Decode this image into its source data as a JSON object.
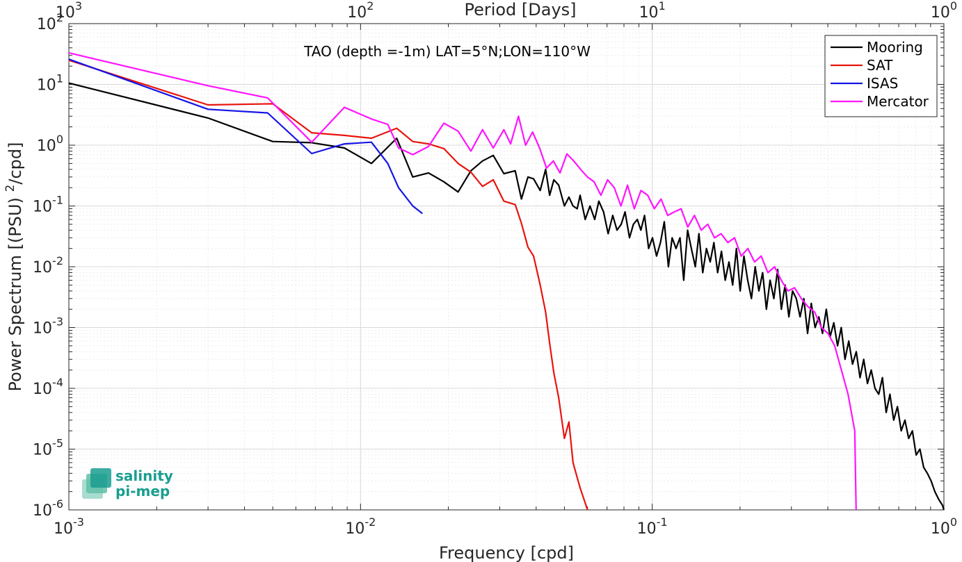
{
  "chart_data": {
    "type": "line",
    "title": "",
    "annotation": "TAO (depth =-1m) LAT=5°N;LON=110°W",
    "xlabel": "Frequency [cpd]",
    "ylabel": "Power Spectrum [(PSU)²/cpd]",
    "x2label": "Period [Days]",
    "xscale": "log",
    "yscale": "log",
    "xlim": [
      0.001,
      1
    ],
    "ylim": [
      1e-06,
      100
    ],
    "grid": true,
    "legend_position": "top-right",
    "x_ticks": [
      {
        "value": 0.001,
        "base": "10",
        "exp": "-3"
      },
      {
        "value": 0.01,
        "base": "10",
        "exp": "-2"
      },
      {
        "value": 0.1,
        "base": "10",
        "exp": "-1"
      },
      {
        "value": 1,
        "base": "10",
        "exp": "0"
      }
    ],
    "x2_ticks": [
      {
        "base": "10",
        "exp": "3"
      },
      {
        "base": "10",
        "exp": "2"
      },
      {
        "base": "10",
        "exp": "1"
      },
      {
        "base": "10",
        "exp": "0"
      }
    ],
    "y_ticks": [
      {
        "value": 1e-06,
        "base": "10",
        "exp": "-6"
      },
      {
        "value": 1e-05,
        "base": "10",
        "exp": "-5"
      },
      {
        "value": 0.0001,
        "base": "10",
        "exp": "-4"
      },
      {
        "value": 0.001,
        "base": "10",
        "exp": "-3"
      },
      {
        "value": 0.01,
        "base": "10",
        "exp": "-2"
      },
      {
        "value": 0.1,
        "base": "10",
        "exp": "-1"
      },
      {
        "value": 1,
        "base": "10",
        "exp": "0"
      },
      {
        "value": 10,
        "base": "10",
        "exp": "1"
      },
      {
        "value": 100,
        "base": "10",
        "exp": "2"
      }
    ],
    "series": [
      {
        "name": "Mooring",
        "color": "#000000",
        "x": [
          0.001,
          0.003,
          0.005,
          0.0068,
          0.0088,
          0.0109,
          0.0133,
          0.0151,
          0.0171,
          0.0193,
          0.0216,
          0.0239,
          0.0262,
          0.0285,
          0.031,
          0.0339,
          0.0356,
          0.0375,
          0.0392,
          0.0413,
          0.0431,
          0.0445,
          0.046,
          0.0478,
          0.05,
          0.0518,
          0.0535,
          0.0553,
          0.0566,
          0.0589,
          0.0612,
          0.0635,
          0.0656,
          0.0681,
          0.0706,
          0.0732,
          0.0757,
          0.0783,
          0.0807,
          0.0836,
          0.0862,
          0.0889,
          0.0914,
          0.0941,
          0.0972,
          0.1002,
          0.1035,
          0.1067,
          0.11,
          0.1136,
          0.117,
          0.1207,
          0.1245,
          0.1282,
          0.1322,
          0.1362,
          0.1405,
          0.1446,
          0.149,
          0.1534,
          0.158,
          0.1627,
          0.1676,
          0.1727,
          0.1779,
          0.1833,
          0.1887,
          0.1944,
          0.2002,
          0.2062,
          0.2124,
          0.2188,
          0.2254,
          0.2321,
          0.2391,
          0.2463,
          0.2536,
          0.2612,
          0.2692,
          0.2772,
          0.2855,
          0.294,
          0.3028,
          0.3119,
          0.3213,
          0.3309,
          0.3408,
          0.351,
          0.3616,
          0.3725,
          0.3836,
          0.3951,
          0.407,
          0.4192,
          0.4318,
          0.4447,
          0.4581,
          0.4718,
          0.486,
          0.5006,
          0.5156,
          0.531,
          0.5469,
          0.5633,
          0.5802,
          0.5977,
          0.6156,
          0.634,
          0.6531,
          0.6727,
          0.6929,
          0.7137,
          0.7351,
          0.7571,
          0.7798,
          0.8032,
          0.8273,
          0.8521,
          0.8777,
          0.904,
          0.9311,
          0.9591,
          0.9879,
          1.0
        ],
        "values": [
          10.5,
          2.8,
          1.15,
          1.1,
          0.9,
          0.5,
          1.3,
          0.3,
          0.35,
          0.25,
          0.17,
          0.38,
          0.55,
          0.68,
          0.34,
          0.38,
          0.13,
          0.3,
          0.28,
          0.18,
          0.4,
          0.15,
          0.27,
          0.22,
          0.1,
          0.14,
          0.1,
          0.09,
          0.15,
          0.06,
          0.1,
          0.06,
          0.12,
          0.08,
          0.035,
          0.07,
          0.04,
          0.05,
          0.08,
          0.03,
          0.05,
          0.06,
          0.04,
          0.07,
          0.02,
          0.03,
          0.015,
          0.025,
          0.055,
          0.01,
          0.03,
          0.02,
          0.03,
          0.006,
          0.04,
          0.02,
          0.01,
          0.035,
          0.008,
          0.02,
          0.012,
          0.025,
          0.008,
          0.018,
          0.006,
          0.012,
          0.005,
          0.02,
          0.004,
          0.015,
          0.006,
          0.003,
          0.01,
          0.004,
          0.008,
          0.002,
          0.006,
          0.003,
          0.009,
          0.002,
          0.005,
          0.0015,
          0.004,
          0.003,
          0.0015,
          0.003,
          0.0008,
          0.0025,
          0.001,
          0.0015,
          0.0008,
          0.002,
          0.0007,
          0.0012,
          0.0005,
          0.001,
          0.0003,
          0.0006,
          0.00025,
          0.0004,
          0.00015,
          0.0003,
          0.00012,
          0.0002,
          0.0001,
          8e-05,
          0.00015,
          4e-05,
          8e-05,
          3e-05,
          5e-05,
          2e-05,
          3e-05,
          1.5e-05,
          2e-05,
          8e-06,
          1e-05,
          5e-06,
          4e-06,
          3e-06,
          2e-06,
          1.5e-06,
          1.2e-06,
          1e-06
        ]
      },
      {
        "name": "SAT",
        "color": "#e8140e",
        "x": [
          0.001,
          0.003,
          0.005,
          0.0068,
          0.0088,
          0.0109,
          0.0133,
          0.0151,
          0.0171,
          0.0193,
          0.0216,
          0.0239,
          0.0262,
          0.0285,
          0.031,
          0.0339,
          0.0356,
          0.0375,
          0.0392,
          0.0413,
          0.0431,
          0.0445,
          0.046,
          0.0478,
          0.05,
          0.0518,
          0.0535,
          0.0553,
          0.0566,
          0.0589,
          0.06
        ],
        "values": [
          25,
          4.6,
          4.8,
          1.6,
          1.45,
          1.3,
          1.9,
          1.15,
          1.05,
          0.88,
          0.5,
          0.36,
          0.21,
          0.27,
          0.12,
          0.105,
          0.052,
          0.021,
          0.015,
          0.005,
          0.0018,
          0.00055,
          0.00018,
          7e-05,
          1.5e-05,
          2.8e-05,
          6e-06,
          3.4e-06,
          2.3e-06,
          1.3e-06,
          1e-06
        ]
      },
      {
        "name": "ISAS",
        "color": "#1414e6",
        "x": [
          0.001,
          0.003,
          0.0048,
          0.0068,
          0.0088,
          0.0109,
          0.0124,
          0.0135,
          0.0151,
          0.0163
        ],
        "values": [
          26,
          3.9,
          3.4,
          0.73,
          1.05,
          1.12,
          0.5,
          0.2,
          0.1,
          0.075
        ]
      },
      {
        "name": "Mercator",
        "color": "#ff14ff",
        "x": [
          0.001,
          0.003,
          0.0048,
          0.0068,
          0.0088,
          0.0109,
          0.0124,
          0.0135,
          0.0151,
          0.0171,
          0.0193,
          0.0216,
          0.0239,
          0.0262,
          0.0285,
          0.031,
          0.0327,
          0.0348,
          0.0368,
          0.0389,
          0.0411,
          0.0434,
          0.0458,
          0.0483,
          0.051,
          0.0538,
          0.0568,
          0.06,
          0.0632,
          0.0667,
          0.0703,
          0.0741,
          0.0781,
          0.0823,
          0.0868,
          0.0915,
          0.0965,
          0.1017,
          0.1072,
          0.113,
          0.1191,
          0.1256,
          0.1324,
          0.1396,
          0.1471,
          0.1551,
          0.1635,
          0.1723,
          0.1817,
          0.1915,
          0.2018,
          0.2128,
          0.2243,
          0.2364,
          0.2492,
          0.2627,
          0.2769,
          0.2919,
          0.3077,
          0.3244,
          0.342,
          0.3605,
          0.38,
          0.4006,
          0.4223,
          0.4452,
          0.4693,
          0.4947,
          0.5
        ],
        "values": [
          33,
          9.5,
          6,
          1.12,
          4.2,
          2.7,
          2.2,
          0.9,
          0.7,
          0.95,
          2.3,
          1.7,
          0.8,
          1.8,
          0.9,
          1.8,
          1.05,
          3.0,
          1.0,
          1.65,
          0.9,
          0.42,
          0.55,
          0.35,
          0.72,
          0.55,
          0.4,
          0.3,
          0.25,
          0.15,
          0.27,
          0.2,
          0.1,
          0.22,
          0.09,
          0.18,
          0.15,
          0.09,
          0.13,
          0.07,
          0.08,
          0.09,
          0.045,
          0.07,
          0.04,
          0.05,
          0.03,
          0.035,
          0.025,
          0.03,
          0.015,
          0.02,
          0.012,
          0.015,
          0.008,
          0.01,
          0.006,
          0.004,
          0.0045,
          0.003,
          0.0022,
          0.0018,
          0.001,
          0.0008,
          0.0005,
          0.0002,
          8e-05,
          2e-05,
          1e-06
        ]
      }
    ]
  },
  "logo": {
    "line1": "salinity",
    "line2": "pi-mep"
  }
}
